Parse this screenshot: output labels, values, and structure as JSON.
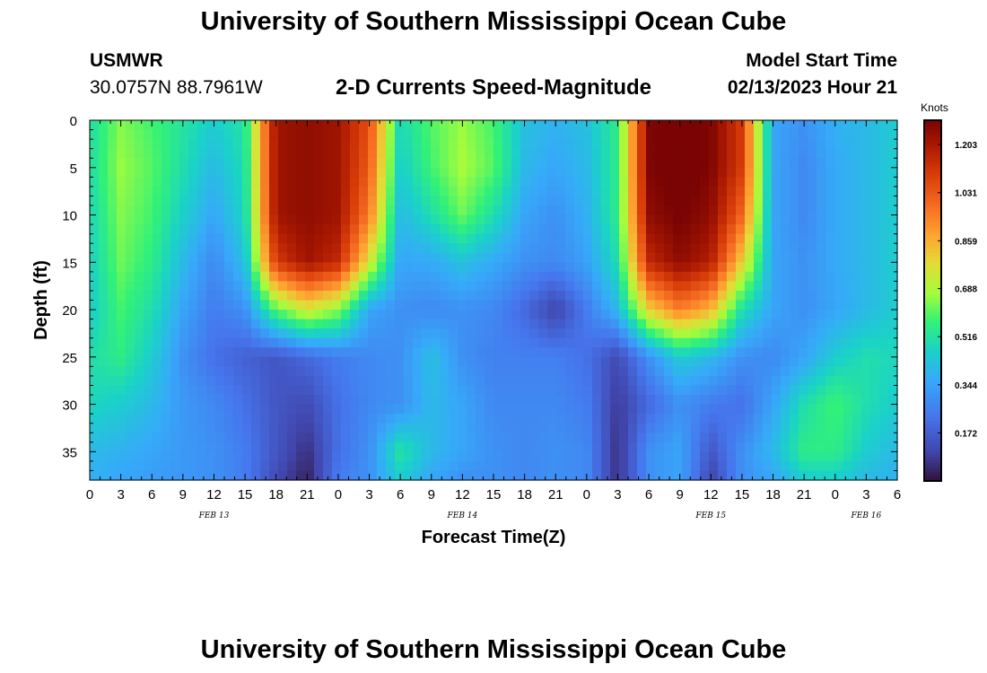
{
  "header": {
    "title": "University of Southern Mississippi Ocean Cube",
    "station": "USMWR",
    "coords": "30.0757N  88.7961W",
    "chart_title": "2-D Currents Speed-Magnitude",
    "start_label": "Model Start Time",
    "start_value": "02/13/2023 Hour 21"
  },
  "footer": {
    "title": "University of Southern Mississippi Ocean Cube"
  },
  "chart_data": {
    "type": "heatmap",
    "xlabel": "Forecast Time(Z)",
    "ylabel": "Depth (ft)",
    "xlim": [
      0,
      78
    ],
    "ylim": [
      0,
      38
    ],
    "y_inverted": true,
    "x_tick_values": [
      0,
      3,
      6,
      9,
      12,
      15,
      18,
      21,
      24,
      27,
      30,
      33,
      36,
      39,
      42,
      45,
      48,
      51,
      54,
      57,
      60,
      63,
      66,
      69,
      72,
      75,
      78
    ],
    "x_tick_labels": [
      "0",
      "3",
      "6",
      "9",
      "12",
      "15",
      "18",
      "21",
      "0",
      "3",
      "6",
      "9",
      "12",
      "15",
      "18",
      "21",
      "0",
      "3",
      "6",
      "9",
      "12",
      "15",
      "18",
      "21",
      "0",
      "3",
      "6"
    ],
    "date_labels": [
      {
        "x": 12,
        "text": "FEB 13"
      },
      {
        "x": 36,
        "text": "FEB 14"
      },
      {
        "x": 60,
        "text": "FEB 15"
      },
      {
        "x": 75,
        "text": "FEB 16"
      }
    ],
    "y_ticks": [
      0,
      5,
      10,
      15,
      20,
      25,
      30,
      35
    ],
    "colorbar": {
      "label": "Knots",
      "min": 0.0,
      "max": 1.29,
      "ticks": [
        0.172,
        0.344,
        0.516,
        0.688,
        0.859,
        1.031,
        1.203
      ]
    },
    "grid_depths": [
      0,
      5,
      10,
      15,
      20,
      25,
      30,
      35,
      38
    ],
    "grid_times": [
      0,
      3,
      6,
      9,
      12,
      15,
      18,
      21,
      24,
      27,
      30,
      33,
      36,
      39,
      42,
      45,
      48,
      51,
      54,
      57,
      60,
      63,
      66,
      69,
      72,
      75,
      78
    ],
    "values": [
      [
        0.5,
        0.64,
        0.58,
        0.52,
        0.45,
        0.52,
        1.22,
        1.25,
        1.22,
        1.05,
        0.48,
        0.6,
        0.66,
        0.58,
        0.42,
        0.38,
        0.42,
        0.55,
        1.28,
        1.3,
        1.28,
        1.1,
        0.35,
        0.3,
        0.38,
        0.4,
        0.45
      ],
      [
        0.5,
        0.66,
        0.6,
        0.5,
        0.4,
        0.5,
        1.22,
        1.25,
        1.22,
        1.02,
        0.45,
        0.58,
        0.68,
        0.6,
        0.4,
        0.35,
        0.4,
        0.55,
        1.28,
        1.32,
        1.28,
        1.1,
        0.35,
        0.28,
        0.36,
        0.4,
        0.45
      ],
      [
        0.48,
        0.64,
        0.58,
        0.46,
        0.35,
        0.48,
        1.22,
        1.25,
        1.22,
        0.95,
        0.4,
        0.5,
        0.62,
        0.5,
        0.35,
        0.3,
        0.38,
        0.55,
        1.25,
        1.3,
        1.25,
        1.0,
        0.35,
        0.28,
        0.36,
        0.4,
        0.45
      ],
      [
        0.46,
        0.62,
        0.55,
        0.4,
        0.28,
        0.42,
        1.1,
        1.22,
        1.15,
        0.75,
        0.35,
        0.36,
        0.42,
        0.36,
        0.3,
        0.28,
        0.34,
        0.5,
        1.15,
        1.25,
        1.18,
        0.8,
        0.35,
        0.3,
        0.36,
        0.4,
        0.45
      ],
      [
        0.45,
        0.58,
        0.5,
        0.35,
        0.25,
        0.3,
        0.6,
        0.75,
        0.65,
        0.35,
        0.3,
        0.28,
        0.3,
        0.28,
        0.2,
        0.1,
        0.25,
        0.4,
        0.8,
        0.95,
        0.85,
        0.5,
        0.35,
        0.3,
        0.35,
        0.4,
        0.45
      ],
      [
        0.5,
        0.55,
        0.45,
        0.3,
        0.22,
        0.18,
        0.15,
        0.2,
        0.25,
        0.28,
        0.3,
        0.42,
        0.3,
        0.26,
        0.26,
        0.26,
        0.22,
        0.12,
        0.3,
        0.45,
        0.4,
        0.3,
        0.28,
        0.35,
        0.45,
        0.5,
        0.48
      ],
      [
        0.48,
        0.45,
        0.4,
        0.32,
        0.28,
        0.22,
        0.15,
        0.12,
        0.22,
        0.28,
        0.3,
        0.4,
        0.35,
        0.28,
        0.28,
        0.28,
        0.25,
        0.08,
        0.2,
        0.3,
        0.25,
        0.22,
        0.35,
        0.5,
        0.58,
        0.5,
        0.45
      ],
      [
        0.4,
        0.38,
        0.35,
        0.32,
        0.3,
        0.25,
        0.15,
        0.06,
        0.22,
        0.3,
        0.52,
        0.4,
        0.35,
        0.3,
        0.28,
        0.3,
        0.28,
        0.06,
        0.3,
        0.35,
        0.15,
        0.3,
        0.4,
        0.55,
        0.55,
        0.45,
        0.4
      ],
      [
        0.38,
        0.35,
        0.33,
        0.32,
        0.3,
        0.25,
        0.12,
        0.03,
        0.25,
        0.3,
        0.45,
        0.35,
        0.3,
        0.3,
        0.28,
        0.3,
        0.28,
        0.06,
        0.3,
        0.35,
        0.1,
        0.3,
        0.35,
        0.45,
        0.45,
        0.4,
        0.38
      ]
    ]
  }
}
